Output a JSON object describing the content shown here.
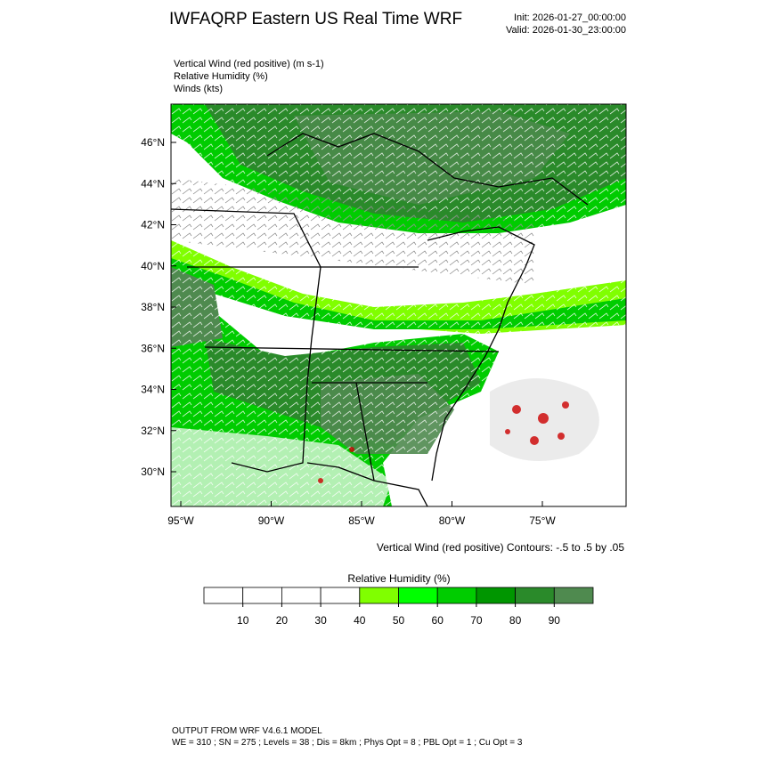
{
  "header": {
    "title": "IWFAQRP Eastern US Real Time WRF",
    "init": "Init: 2026-01-27_00:00:00",
    "valid": "Valid: 2026-01-30_23:00:00"
  },
  "fields": [
    "Vertical Wind (red positive)   (m s-1)",
    "Relative Humidity   (%)",
    "Winds   (kts)"
  ],
  "map": {
    "lat_labels": [
      "46°N",
      "44°N",
      "42°N",
      "40°N",
      "38°N",
      "36°N",
      "34°N",
      "32°N",
      "30°N"
    ],
    "lon_labels": [
      "95°W",
      "90°W",
      "85°W",
      "80°W",
      "75°W"
    ],
    "contour_note": "Vertical Wind (red positive) Contours: -.5 to .5 by .05"
  },
  "colorbar": {
    "title": "Relative Humidity  (%)",
    "ticks": [
      10,
      20,
      30,
      40,
      50,
      60,
      70,
      80,
      90
    ],
    "colors": [
      "#ffffff",
      "#ffffff",
      "#ffffff",
      "#ffffff",
      "#80ff00",
      "#00ff00",
      "#00cc00",
      "#009600",
      "#2a8a2a",
      "#4f8a4f"
    ]
  },
  "footer": {
    "model": "OUTPUT FROM WRF V4.6.1 MODEL",
    "settings": "WE = 310 ; SN = 275 ; Levels = 38 ; Dis = 8km ; Phys Opt = 8 ; PBL Opt = 1 ; Cu Opt = 3"
  }
}
